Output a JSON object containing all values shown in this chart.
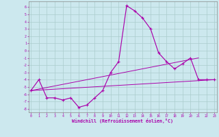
{
  "xlabel": "Windchill (Refroidissement éolien,°C)",
  "xlim_min": -0.3,
  "xlim_max": 23.3,
  "ylim_min": -8.5,
  "ylim_max": 6.8,
  "yticks": [
    6,
    5,
    4,
    3,
    2,
    1,
    0,
    -1,
    -2,
    -3,
    -4,
    -5,
    -6,
    -7,
    -8
  ],
  "xticks": [
    0,
    1,
    2,
    3,
    4,
    5,
    6,
    7,
    8,
    9,
    10,
    11,
    12,
    13,
    14,
    15,
    16,
    17,
    18,
    19,
    20,
    21,
    22,
    23
  ],
  "bg_color": "#cce8ee",
  "line_color": "#aa00aa",
  "grid_color": "#aacccc",
  "main_x": [
    0,
    1,
    2,
    3,
    4,
    5,
    6,
    7,
    8,
    9,
    10,
    11,
    12,
    13,
    14,
    15,
    16,
    17,
    18,
    19,
    20,
    21,
    22,
    23
  ],
  "main_y": [
    -5.5,
    -4.0,
    -6.5,
    -6.5,
    -6.8,
    -6.5,
    -7.8,
    -7.5,
    -6.5,
    -5.5,
    -3.0,
    -1.5,
    6.2,
    5.5,
    4.5,
    3.0,
    -0.3,
    -1.5,
    -2.5,
    -1.8,
    -1.0,
    -4.0,
    -4.0,
    -4.0
  ],
  "trend1_x": [
    0,
    23
  ],
  "trend1_y": [
    -5.5,
    -4.0
  ],
  "trend2_x": [
    0,
    21
  ],
  "trend2_y": [
    -5.5,
    -1.0
  ]
}
